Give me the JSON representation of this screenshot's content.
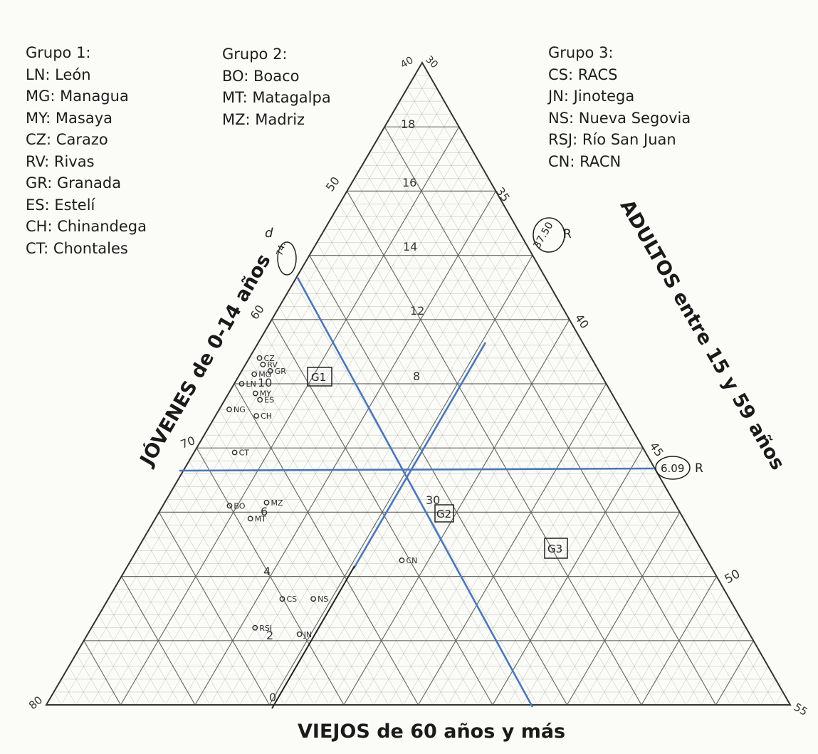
{
  "legend": {
    "g1": {
      "title": "Grupo 1:",
      "items": [
        "LN: León",
        "MG: Managua",
        "MY: Masaya",
        "CZ: Carazo",
        "RV: Rivas",
        "GR: Granada",
        "ES: Estelí",
        "CH: Chinandega",
        "CT: Chontales"
      ]
    },
    "g2": {
      "title": "Grupo 2:",
      "items": [
        "BO: Boaco",
        "MT: Matagalpa",
        "MZ: Madriz"
      ]
    },
    "g3": {
      "title": "Grupo 3:",
      "items": [
        "CS: RACS",
        "JN: Jinotega",
        "NS: Nueva Segovia",
        "RSJ: Río San Juan",
        "CN: RACN"
      ]
    }
  },
  "colors": {
    "reference_lines": "#4a78b8",
    "grid": "#8a8a8a",
    "ink": "#2a2a2a",
    "paper": "#fbfbf8"
  },
  "chart_data": {
    "type": "scatter",
    "subtype": "ternary",
    "axes": {
      "left": {
        "label": "JÓVENES de 0-14 años",
        "range": [
          40,
          80
        ],
        "ticks": [
          50,
          60,
          70
        ]
      },
      "right": {
        "label": "ADULTOS entre 15 y 59 años",
        "range": [
          30,
          55
        ],
        "ticks": [
          35,
          40,
          45,
          50
        ]
      },
      "bottom": {
        "label": "VIEJOS de 60 años y más",
        "range": [
          0,
          20
        ],
        "ticks": [
          2,
          4,
          6,
          8,
          10,
          12,
          14,
          16,
          18
        ]
      }
    },
    "corner_labels": {
      "top": [
        "40",
        "30"
      ],
      "bottom_left": "80",
      "bottom_right": "55"
    },
    "reference_values": {
      "left": "74.",
      "left_note": "d",
      "right_upper": "37.50",
      "right_upper_note": "R",
      "right_lower": "6.09",
      "right_lower_note": "R"
    },
    "group_boxes": [
      "G1",
      "G2",
      "G3"
    ],
    "points": [
      {
        "label": "CZ",
        "u": 0.54,
        "v": 0.03
      },
      {
        "label": "RV",
        "u": 0.53,
        "v": 0.05
      },
      {
        "label": "LN",
        "u": 0.5,
        "v": 0.02
      },
      {
        "label": "MG",
        "u": 0.515,
        "v": 0.04
      },
      {
        "label": "GR",
        "u": 0.52,
        "v": 0.08
      },
      {
        "label": "MY",
        "u": 0.485,
        "v": 0.07
      },
      {
        "label": "ES",
        "u": 0.475,
        "v": 0.09
      },
      {
        "label": "NG",
        "u": 0.46,
        "v": 0.025
      },
      {
        "label": "CH",
        "u": 0.45,
        "v": 0.1
      },
      {
        "label": "CT",
        "u": 0.393,
        "v": 0.09
      },
      {
        "label": "BO",
        "u": 0.31,
        "v": 0.13
      },
      {
        "label": "MZ",
        "u": 0.315,
        "v": 0.2
      },
      {
        "label": "MT",
        "u": 0.29,
        "v": 0.18
      },
      {
        "label": "CN",
        "u": 0.225,
        "v": 0.47
      },
      {
        "label": "CS",
        "u": 0.165,
        "v": 0.28
      },
      {
        "label": "NS",
        "u": 0.165,
        "v": 0.33
      },
      {
        "label": "RSJ",
        "u": 0.12,
        "v": 0.25
      },
      {
        "label": "JN",
        "u": 0.11,
        "v": 0.32
      }
    ],
    "handwritten_scale": [
      "18",
      "16",
      "14",
      "12",
      "10",
      "8",
      "6",
      "4",
      "2",
      "0",
      "30"
    ]
  }
}
